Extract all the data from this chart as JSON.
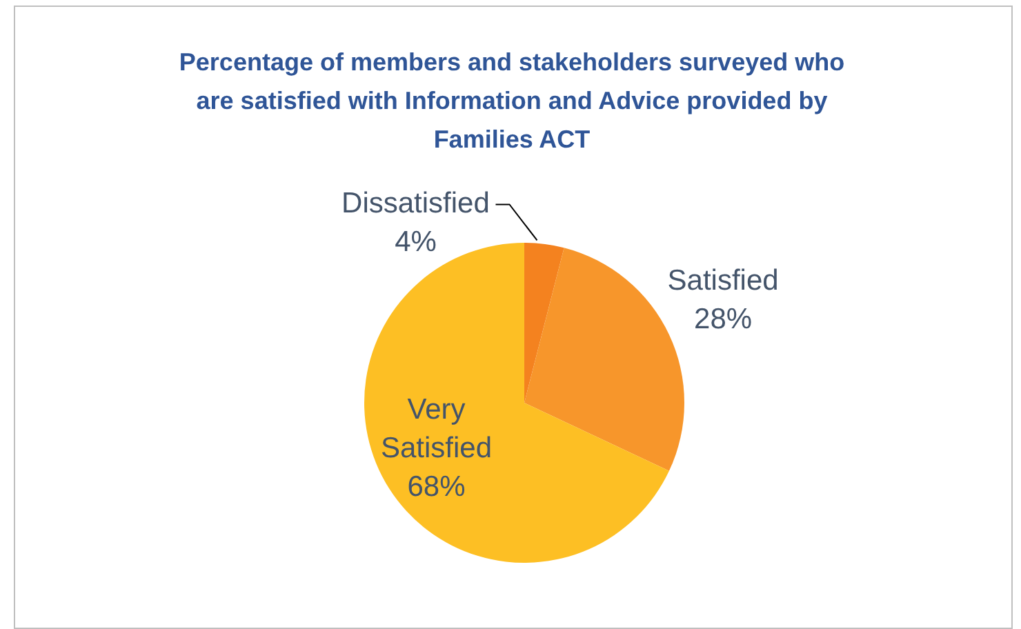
{
  "chart_data": {
    "type": "pie",
    "title": "Percentage of members and stakeholders surveyed who are satisfied with Information and Advice provided by Families ACT",
    "categories": [
      "Dissatisfied",
      "Satisfied",
      "Very Satisfied"
    ],
    "values": [
      4,
      28,
      68
    ],
    "value_labels": [
      "4%",
      "28%",
      "68%"
    ],
    "colors": [
      "#f4821f",
      "#f7962b",
      "#fdbf24"
    ]
  }
}
